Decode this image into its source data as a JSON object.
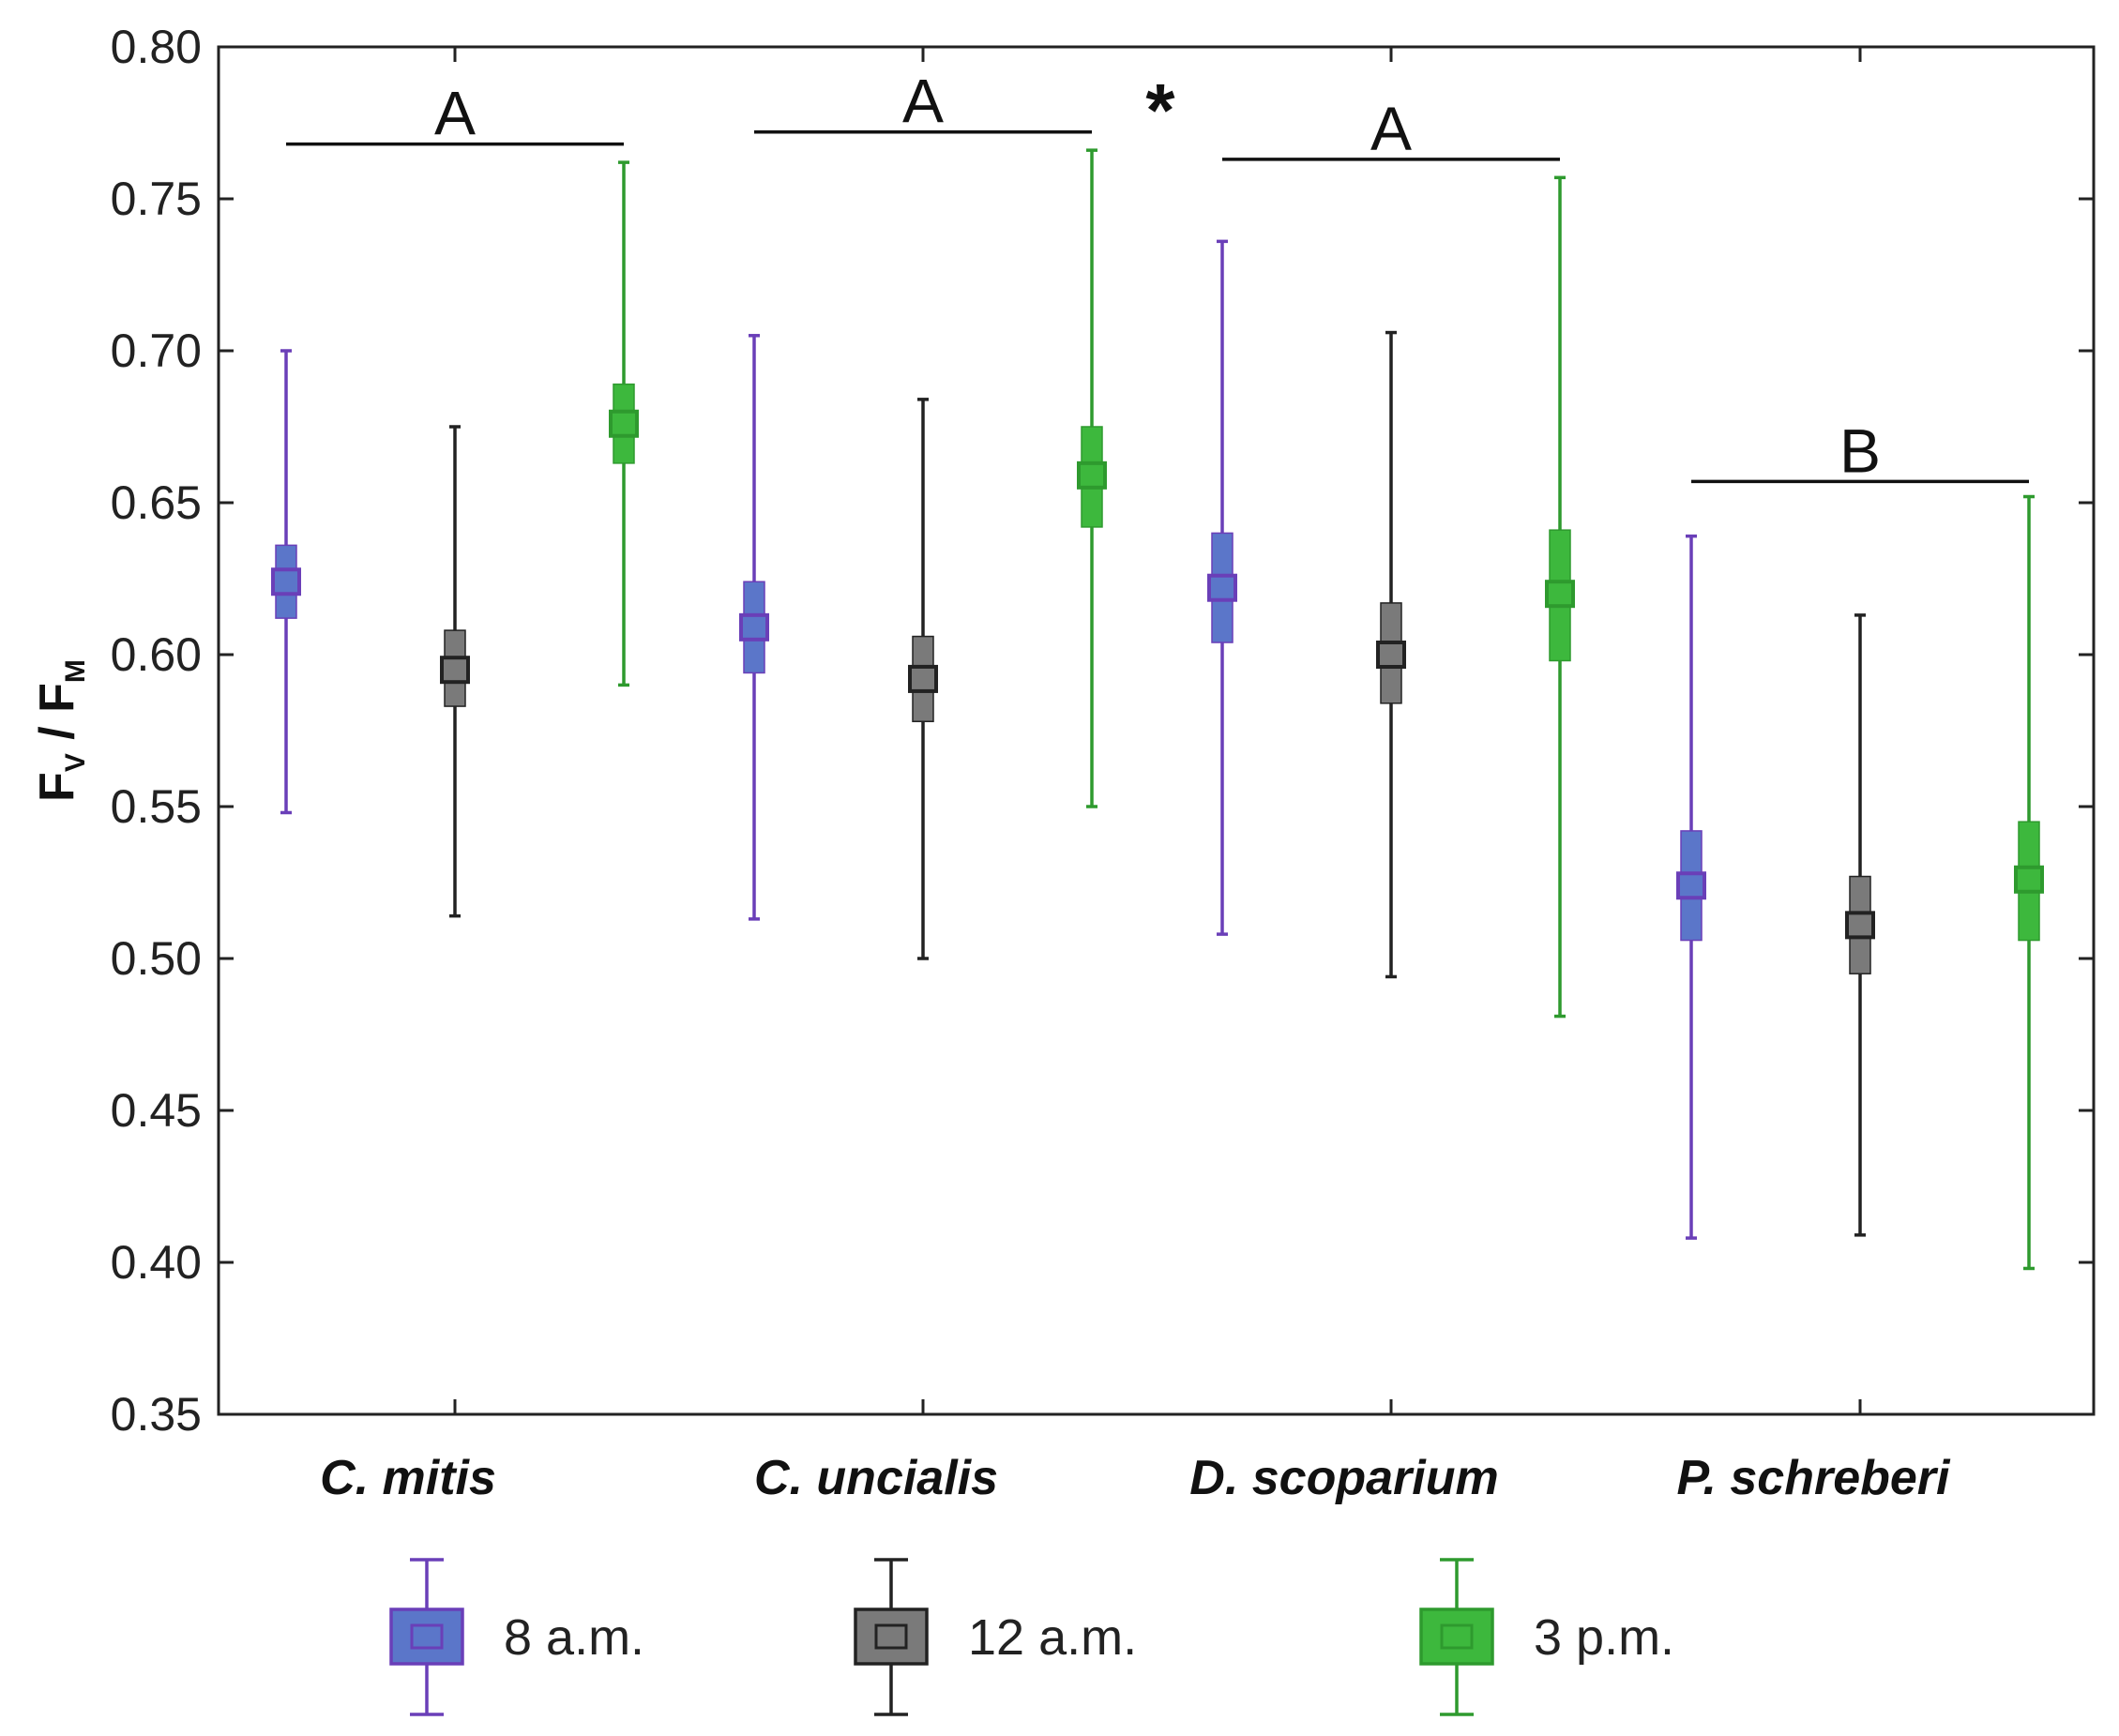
{
  "chart_data": {
    "type": "box",
    "y_axis_label": {
      "main1": "F",
      "sub1": "V",
      "slash": " / ",
      "main2": "F",
      "sub2": "M"
    },
    "ylim": [
      0.35,
      0.8
    ],
    "y_ticks": [
      "0.80",
      "0.75",
      "0.70",
      "0.65",
      "0.60",
      "0.55",
      "0.50",
      "0.45",
      "0.40",
      "0.35"
    ],
    "y_tick_values": [
      0.8,
      0.75,
      0.7,
      0.65,
      0.6,
      0.55,
      0.5,
      0.45,
      0.4,
      0.35
    ],
    "categories": [
      "C. mitis",
      "C. uncialis",
      "D. scoparium",
      "P. schreberi"
    ],
    "series": [
      {
        "name": "8 a.m.",
        "color": "#5b76c9",
        "edge": "#6a3fb8",
        "mean": [
          0.624,
          0.609,
          0.622,
          0.524
        ],
        "box_low": [
          0.612,
          0.594,
          0.604,
          0.506
        ],
        "box_high": [
          0.636,
          0.624,
          0.64,
          0.542
        ],
        "whisker_low": [
          0.548,
          0.513,
          0.508,
          0.408
        ],
        "whisker_high": [
          0.7,
          0.705,
          0.736,
          0.639
        ]
      },
      {
        "name": "12 a.m.",
        "color": "#7a7a7a",
        "edge": "#222222",
        "mean": [
          0.595,
          0.592,
          0.6,
          0.511
        ],
        "box_low": [
          0.583,
          0.578,
          0.584,
          0.495
        ],
        "box_high": [
          0.608,
          0.606,
          0.617,
          0.527
        ],
        "whisker_low": [
          0.514,
          0.5,
          0.494,
          0.409
        ],
        "whisker_high": [
          0.675,
          0.684,
          0.706,
          0.613
        ]
      },
      {
        "name": "3 p.m.",
        "color": "#3db83d",
        "edge": "#2e9a2e",
        "mean": [
          0.676,
          0.659,
          0.62,
          0.526
        ],
        "box_low": [
          0.663,
          0.642,
          0.598,
          0.506
        ],
        "box_high": [
          0.689,
          0.675,
          0.641,
          0.545
        ],
        "whisker_low": [
          0.59,
          0.55,
          0.481,
          0.398
        ],
        "whisker_high": [
          0.762,
          0.766,
          0.757,
          0.652
        ]
      }
    ],
    "group_annotations": [
      {
        "label": "A",
        "category_index": 0,
        "y": 0.768
      },
      {
        "label": "A",
        "category_index": 1,
        "y": 0.772
      },
      {
        "label": "A",
        "category_index": 2,
        "y": 0.763
      },
      {
        "label": "B",
        "category_index": 3,
        "y": 0.657
      }
    ],
    "significance_marker": {
      "label": "*",
      "y": 0.783
    }
  }
}
